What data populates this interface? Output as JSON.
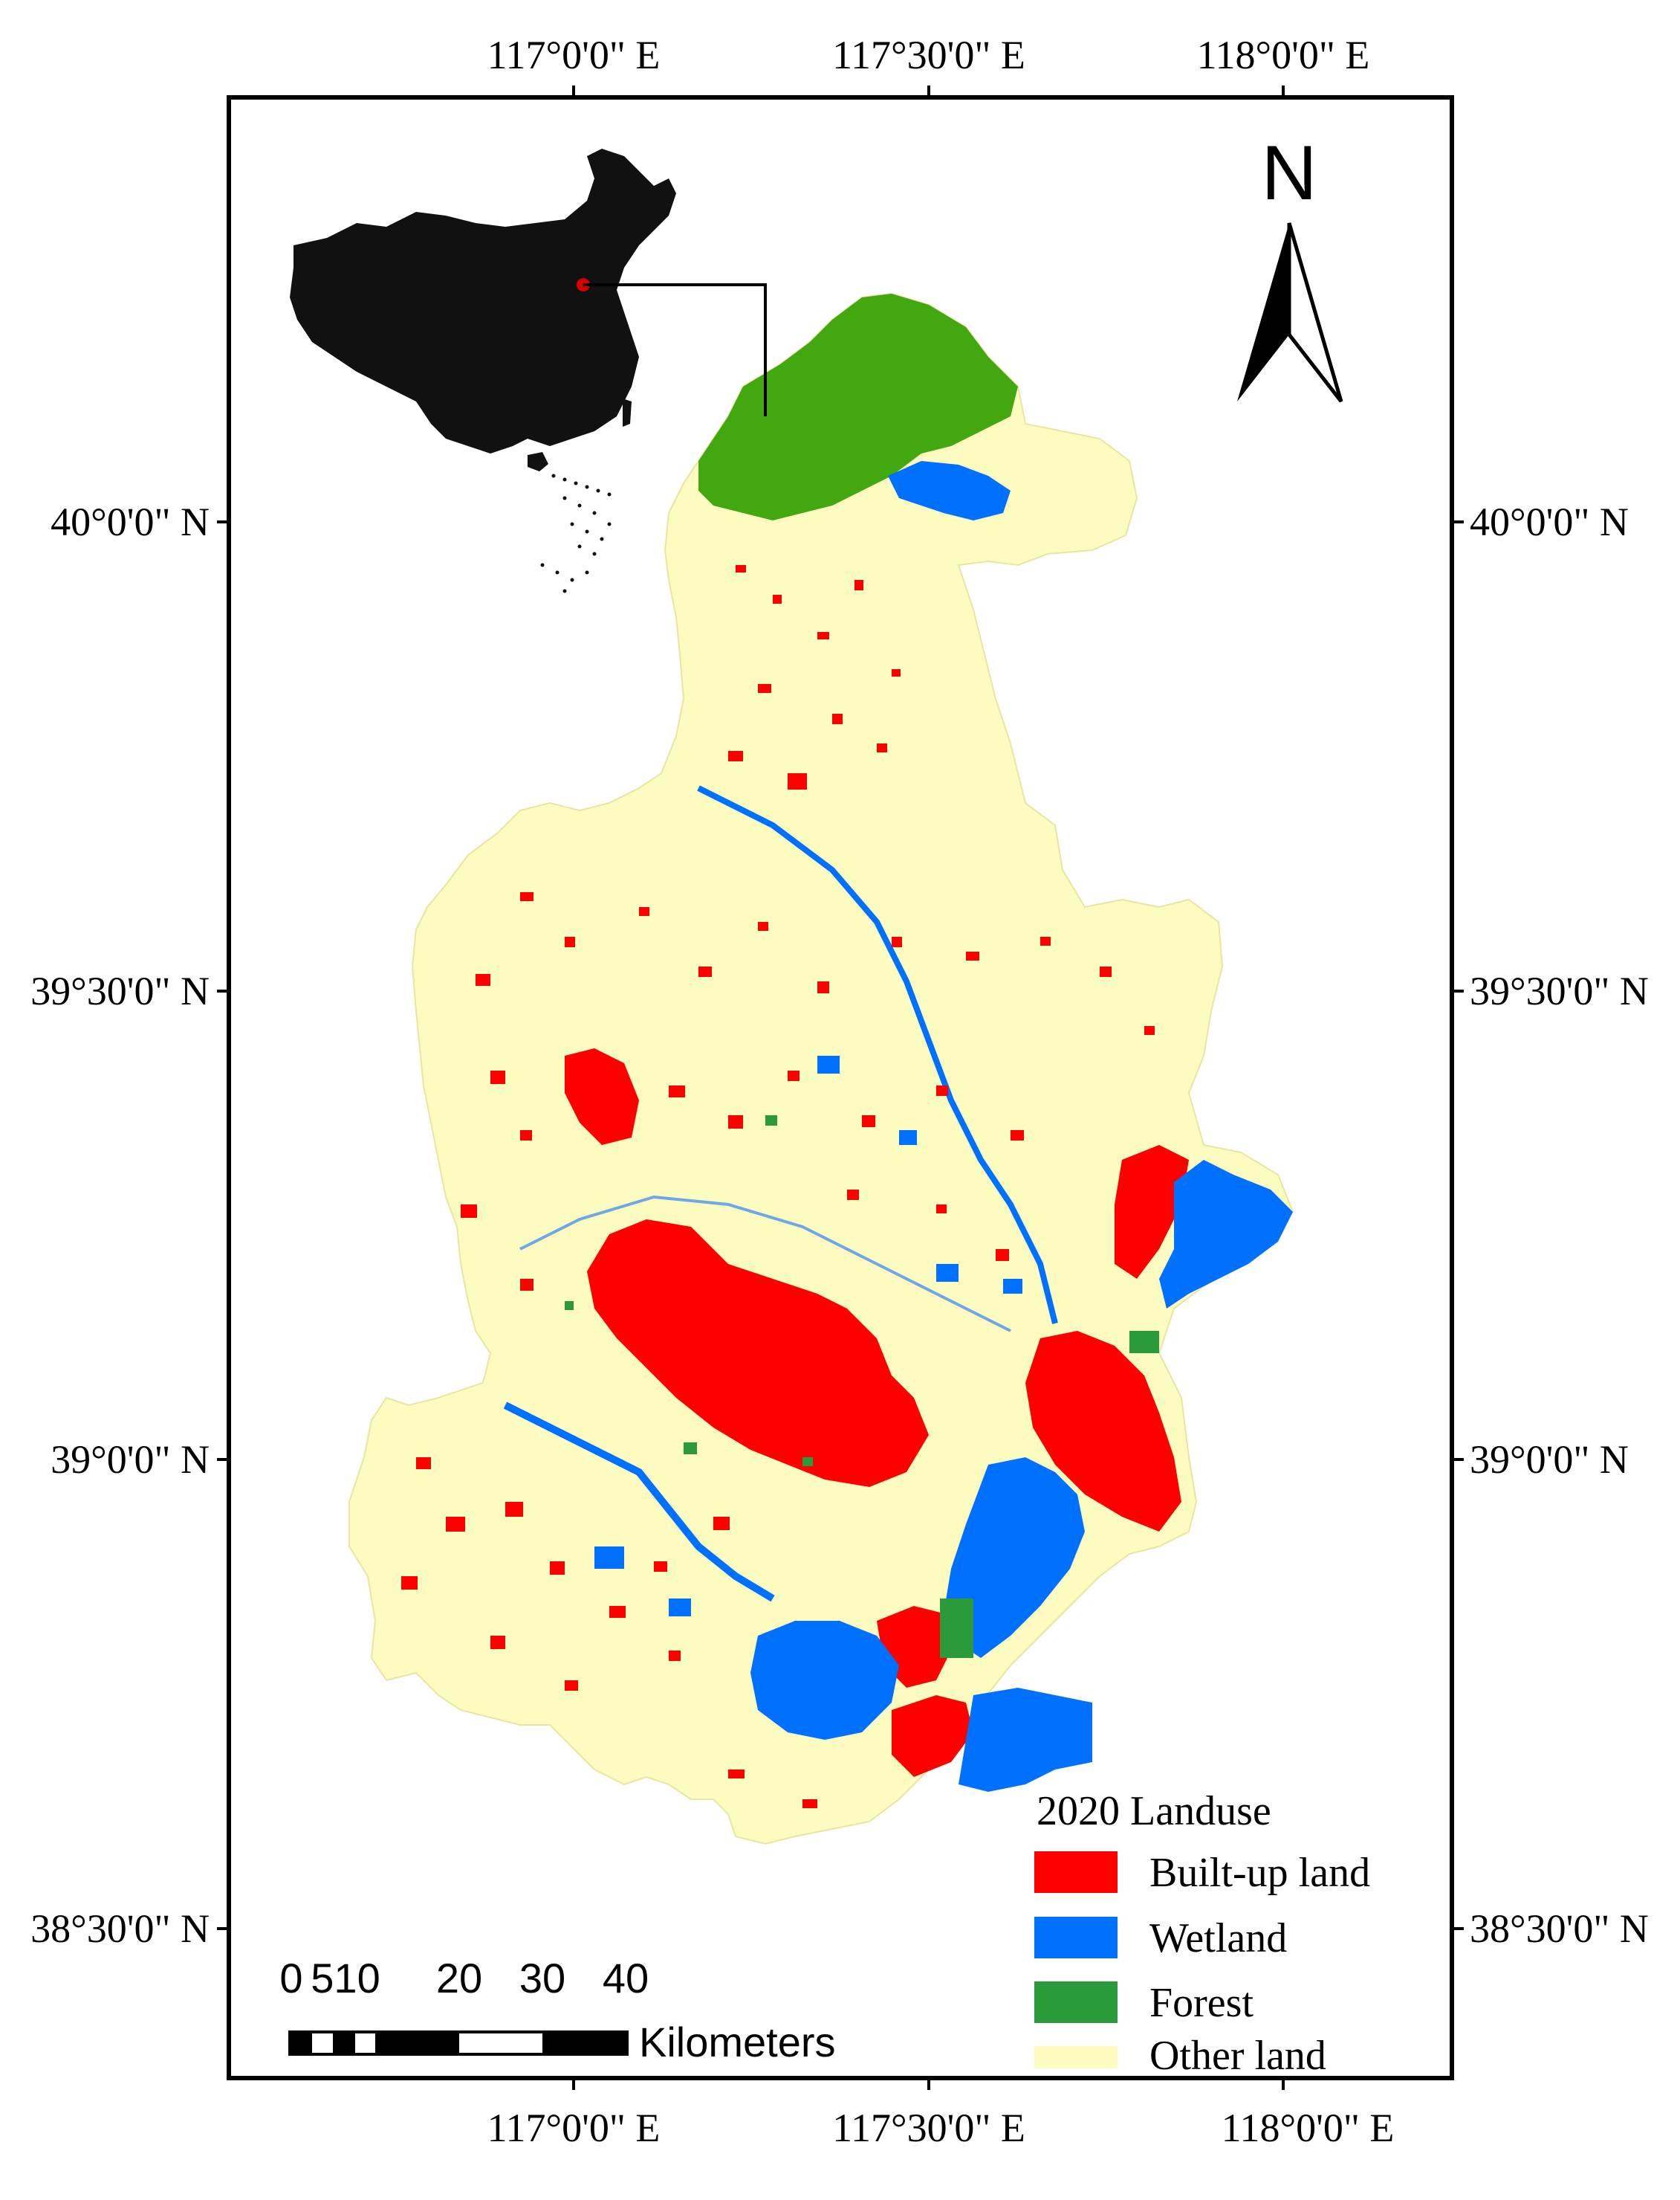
{
  "map": {
    "top_lon_labels": [
      "117°0'0\" E",
      "117°30'0\" E",
      "118°0'0\" E"
    ],
    "bottom_lon_labels": [
      "117°0'0\" E",
      "117°30'0\" E",
      "118°0'0\" E"
    ],
    "left_lat_labels": [
      "40°0'0\" N",
      "39°30'0\" N",
      "39°0'0\" N",
      "38°30'0\" N"
    ],
    "right_lat_labels": [
      "40°0'0\" N",
      "39°30'0\" N",
      "39°0'0\" N",
      "38°30'0\" N"
    ],
    "north_label": "N",
    "legend": {
      "title": "2020 Landuse",
      "items": [
        {
          "label": "Built-up land",
          "color": "#ff0000"
        },
        {
          "label": "Wetland",
          "color": "#0070ff"
        },
        {
          "label": "Forest",
          "color": "#2a9a3a"
        },
        {
          "label": "Other land",
          "color": "#fdfcc0"
        }
      ]
    },
    "scale_bar": {
      "ticks": [
        "0",
        "510",
        "20",
        "30",
        "40"
      ],
      "unit": "Kilometers"
    },
    "colors": {
      "built_up": "#ff0000",
      "wetland": "#0070ff",
      "forest": "#2a9a3a",
      "other": "#fdfcc0",
      "mountain_forest": "#42a80f",
      "inset_country": "#111111",
      "inset_marker": "#d40000",
      "frame": "#000000"
    }
  }
}
